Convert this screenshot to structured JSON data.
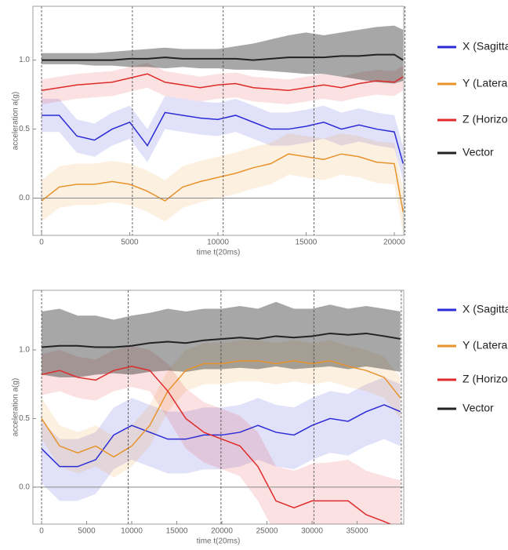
{
  "chart_data": [
    {
      "type": "line",
      "xlabel": "time t(20ms)",
      "ylabel": "acceleration a(g)",
      "xlim": [
        -490,
        20535
      ],
      "ylim": [
        -0.27,
        1.39
      ],
      "xticks": [
        0,
        5000,
        10000,
        15000,
        20000
      ],
      "yticks": [
        {
          "value": 0,
          "label": "0.0"
        },
        0.5,
        {
          "value": 1,
          "label": "1.0"
        }
      ],
      "hline": 0,
      "vlines": [
        0,
        5150,
        10300,
        15450,
        20600
      ],
      "x": [
        0,
        1000,
        2000,
        3000,
        4000,
        5000,
        6000,
        7000,
        8000,
        9000,
        10000,
        11000,
        12000,
        13000,
        14000,
        15000,
        16000,
        17000,
        18000,
        19000,
        20000,
        20500
      ],
      "series": [
        {
          "name": "X (Sagitta",
          "color": "#2b2bd6",
          "values": [
            0.6,
            0.6,
            0.45,
            0.42,
            0.5,
            0.55,
            0.38,
            0.62,
            0.6,
            0.58,
            0.57,
            0.6,
            0.55,
            0.5,
            0.5,
            0.52,
            0.55,
            0.5,
            0.53,
            0.5,
            0.48,
            0.25
          ],
          "upper": [
            0.72,
            0.72,
            0.57,
            0.54,
            0.62,
            0.67,
            0.5,
            0.74,
            0.72,
            0.7,
            0.69,
            0.72,
            0.67,
            0.62,
            0.62,
            0.64,
            0.67,
            0.62,
            0.65,
            0.62,
            0.6,
            0.37
          ],
          "lower": [
            0.48,
            0.48,
            0.33,
            0.3,
            0.38,
            0.43,
            0.26,
            0.5,
            0.48,
            0.46,
            0.45,
            0.48,
            0.43,
            0.38,
            0.38,
            0.4,
            0.43,
            0.38,
            0.41,
            0.38,
            0.36,
            0.13
          ]
        },
        {
          "name": "Y (Lateral",
          "color": "#e8922a",
          "values": [
            -0.02,
            0.08,
            0.1,
            0.1,
            0.12,
            0.1,
            0.05,
            -0.02,
            0.08,
            0.12,
            0.15,
            0.18,
            0.22,
            0.25,
            0.32,
            0.3,
            0.28,
            0.32,
            0.3,
            0.26,
            0.25,
            -0.1
          ],
          "upper": [
            0.13,
            0.23,
            0.25,
            0.25,
            0.27,
            0.25,
            0.2,
            0.13,
            0.23,
            0.27,
            0.3,
            0.33,
            0.37,
            0.4,
            0.47,
            0.45,
            0.43,
            0.47,
            0.45,
            0.41,
            0.4,
            0.05
          ],
          "lower": [
            -0.17,
            -0.07,
            -0.05,
            -0.05,
            -0.03,
            -0.05,
            -0.1,
            -0.17,
            -0.07,
            -0.03,
            0,
            0.03,
            0.07,
            0.1,
            0.17,
            0.15,
            0.13,
            0.17,
            0.15,
            0.11,
            0.1,
            -0.25
          ]
        },
        {
          "name": "Z (Horizon",
          "color": "#e02a2a",
          "values": [
            0.78,
            0.8,
            0.82,
            0.83,
            0.84,
            0.87,
            0.9,
            0.84,
            0.82,
            0.8,
            0.82,
            0.83,
            0.8,
            0.79,
            0.78,
            0.8,
            0.82,
            0.8,
            0.83,
            0.85,
            0.84,
            0.88
          ],
          "upper": [
            0.86,
            0.88,
            0.9,
            0.91,
            0.92,
            0.95,
            0.98,
            0.92,
            0.9,
            0.88,
            0.9,
            0.91,
            0.88,
            0.87,
            0.86,
            0.88,
            0.9,
            0.88,
            0.91,
            0.93,
            0.92,
            0.96
          ],
          "lower": [
            0.68,
            0.7,
            0.72,
            0.73,
            0.74,
            0.77,
            0.8,
            0.74,
            0.72,
            0.7,
            0.72,
            0.73,
            0.7,
            0.69,
            0.68,
            0.7,
            0.72,
            0.7,
            0.73,
            0.75,
            0.74,
            0.78
          ]
        },
        {
          "name": "Vector",
          "color": "#222222",
          "values": [
            1.0,
            1.0,
            1.0,
            1.0,
            1.0,
            1.01,
            1.01,
            1.02,
            1.01,
            1.01,
            1.01,
            1.01,
            1.0,
            1.01,
            1.02,
            1.02,
            1.02,
            1.03,
            1.03,
            1.04,
            1.04,
            1.0
          ],
          "upper": [
            1.05,
            1.05,
            1.05,
            1.05,
            1.06,
            1.07,
            1.08,
            1.09,
            1.08,
            1.08,
            1.08,
            1.1,
            1.12,
            1.15,
            1.18,
            1.2,
            1.18,
            1.2,
            1.22,
            1.24,
            1.25,
            1.22
          ],
          "lower": [
            0.97,
            0.97,
            0.97,
            0.96,
            0.96,
            0.95,
            0.95,
            0.94,
            0.95,
            0.94,
            0.94,
            0.93,
            0.93,
            0.92,
            0.91,
            0.9,
            0.9,
            0.88,
            0.86,
            0.84,
            0.83,
            0.85
          ]
        }
      ]
    },
    {
      "type": "line",
      "xlabel": "time t(20ms)",
      "ylabel": "acceleration a(g)",
      "xlim": [
        -960,
        40170
      ],
      "ylim": [
        -0.269,
        1.434
      ],
      "xticks": [
        0,
        5000,
        10000,
        15000,
        20000,
        25000,
        30000,
        35000
      ],
      "yticks": [
        {
          "value": 0,
          "label": "0.0"
        },
        0.5,
        {
          "value": 1,
          "label": "1.0"
        }
      ],
      "hline": 0,
      "vlines": [
        0,
        9600,
        19900,
        30200,
        39900
      ],
      "x": [
        0,
        2000,
        4000,
        6000,
        8000,
        10000,
        12000,
        14000,
        16000,
        18000,
        20000,
        22000,
        24000,
        26000,
        28000,
        30000,
        32000,
        34000,
        36000,
        38000,
        39800
      ],
      "series": [
        {
          "name": "X (Sagitta",
          "color": "#2b2bd6",
          "values": [
            0.28,
            0.15,
            0.15,
            0.2,
            0.38,
            0.45,
            0.4,
            0.35,
            0.35,
            0.38,
            0.38,
            0.4,
            0.45,
            0.4,
            0.38,
            0.45,
            0.5,
            0.48,
            0.55,
            0.6,
            0.55
          ],
          "upper": [
            0.48,
            0.35,
            0.35,
            0.4,
            0.58,
            0.65,
            0.6,
            0.55,
            0.55,
            0.58,
            0.58,
            0.6,
            0.65,
            0.6,
            0.58,
            0.65,
            0.7,
            0.68,
            0.75,
            0.8,
            0.75
          ],
          "lower": [
            0.03,
            -0.1,
            -0.1,
            -0.05,
            0.13,
            0.2,
            0.15,
            0.1,
            0.1,
            0.13,
            0.13,
            0.15,
            0.2,
            0.15,
            0.13,
            0.2,
            0.25,
            0.23,
            0.3,
            0.35,
            0.3
          ]
        },
        {
          "name": "Y (Lateral",
          "color": "#e8922a",
          "values": [
            0.5,
            0.3,
            0.25,
            0.3,
            0.22,
            0.3,
            0.45,
            0.7,
            0.85,
            0.9,
            0.9,
            0.92,
            0.92,
            0.9,
            0.92,
            0.9,
            0.92,
            0.88,
            0.85,
            0.8,
            0.65
          ],
          "upper": [
            0.65,
            0.45,
            0.4,
            0.45,
            0.37,
            0.45,
            0.6,
            0.85,
            1.0,
            1.05,
            1.05,
            1.07,
            1.07,
            1.05,
            1.07,
            1.05,
            1.07,
            1.03,
            1.0,
            0.95,
            0.8
          ],
          "lower": [
            0.35,
            0.15,
            0.1,
            0.15,
            0.07,
            0.15,
            0.3,
            0.55,
            0.7,
            0.75,
            0.75,
            0.77,
            0.77,
            0.75,
            0.77,
            0.75,
            0.77,
            0.73,
            0.7,
            0.65,
            0.5
          ]
        },
        {
          "name": "Z (Horizon",
          "color": "#e02a2a",
          "values": [
            0.82,
            0.85,
            0.8,
            0.78,
            0.85,
            0.88,
            0.85,
            0.7,
            0.5,
            0.4,
            0.35,
            0.3,
            0.15,
            -0.1,
            -0.15,
            -0.1,
            -0.1,
            -0.1,
            -0.2,
            -0.25,
            -0.3
          ],
          "upper": [
            0.97,
            1.0,
            0.95,
            0.93,
            1.0,
            1.03,
            1.0,
            0.9,
            0.72,
            0.62,
            0.57,
            0.52,
            0.4,
            0.15,
            0.12,
            0.17,
            0.18,
            0.2,
            0.12,
            0.08,
            0.05
          ],
          "lower": [
            0.67,
            0.7,
            0.65,
            0.63,
            0.7,
            0.73,
            0.7,
            0.5,
            0.28,
            0.18,
            0.13,
            0.08,
            -0.1,
            -0.35,
            -0.42,
            -0.37,
            -0.38,
            -0.4,
            -0.52,
            -0.58,
            -0.65
          ]
        },
        {
          "name": "Vector",
          "color": "#222222",
          "values": [
            1.02,
            1.03,
            1.03,
            1.02,
            1.02,
            1.03,
            1.05,
            1.06,
            1.05,
            1.07,
            1.08,
            1.09,
            1.08,
            1.1,
            1.09,
            1.1,
            1.12,
            1.11,
            1.12,
            1.1,
            1.08
          ],
          "upper": [
            1.28,
            1.3,
            1.25,
            1.25,
            1.22,
            1.25,
            1.27,
            1.3,
            1.28,
            1.3,
            1.3,
            1.32,
            1.3,
            1.35,
            1.3,
            1.3,
            1.33,
            1.3,
            1.32,
            1.3,
            1.28
          ],
          "lower": [
            0.82,
            0.8,
            0.8,
            0.82,
            0.83,
            0.82,
            0.84,
            0.85,
            0.84,
            0.86,
            0.86,
            0.87,
            0.86,
            0.88,
            0.86,
            0.87,
            0.88,
            0.86,
            0.88,
            0.86,
            0.84
          ]
        }
      ]
    }
  ]
}
